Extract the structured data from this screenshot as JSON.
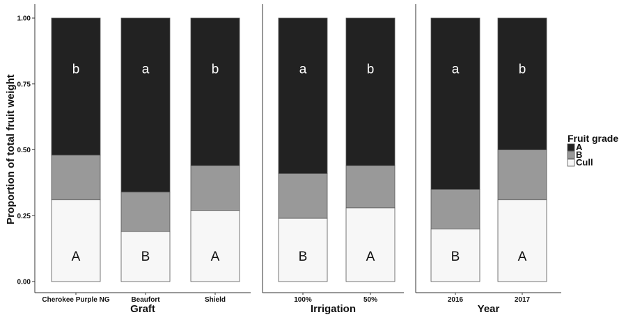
{
  "chart_data": {
    "type": "bar",
    "stacked": true,
    "ylabel": "Proportion of total fruit weight",
    "ylim": [
      0,
      1
    ],
    "yticks": [
      "0.00",
      "0.25",
      "0.50",
      "0.75",
      "1.00"
    ],
    "ytick_values": [
      0,
      0.25,
      0.5,
      0.75,
      1.0
    ],
    "grid": false,
    "legend": {
      "title": "Fruit grade",
      "position": "right",
      "entries": [
        {
          "label": "A",
          "color": "#222222"
        },
        {
          "label": "B",
          "color": "#999999"
        },
        {
          "label": "Cull",
          "color": "#f7f7f7"
        }
      ]
    },
    "panels": [
      {
        "title": "Graft",
        "categories": [
          "Cherokee Purple NG",
          "Beaufort",
          "Shield"
        ],
        "cull": [
          0.31,
          0.19,
          0.27
        ],
        "b": [
          0.17,
          0.15,
          0.17
        ],
        "a": [
          0.52,
          0.66,
          0.56
        ],
        "top_letters": [
          "b",
          "a",
          "b"
        ],
        "bottom_letters": [
          "A",
          "B",
          "A"
        ]
      },
      {
        "title": "Irrigation",
        "categories": [
          "100%",
          "50%"
        ],
        "cull": [
          0.24,
          0.28
        ],
        "b": [
          0.17,
          0.16
        ],
        "a": [
          0.59,
          0.56
        ],
        "top_letters": [
          "a",
          "b"
        ],
        "bottom_letters": [
          "B",
          "A"
        ]
      },
      {
        "title": "Year",
        "categories": [
          "2016",
          "2017"
        ],
        "cull": [
          0.2,
          0.31
        ],
        "b": [
          0.15,
          0.19
        ],
        "a": [
          0.65,
          0.5
        ],
        "top_letters": [
          "a",
          "b"
        ],
        "bottom_letters": [
          "B",
          "A"
        ]
      }
    ]
  }
}
